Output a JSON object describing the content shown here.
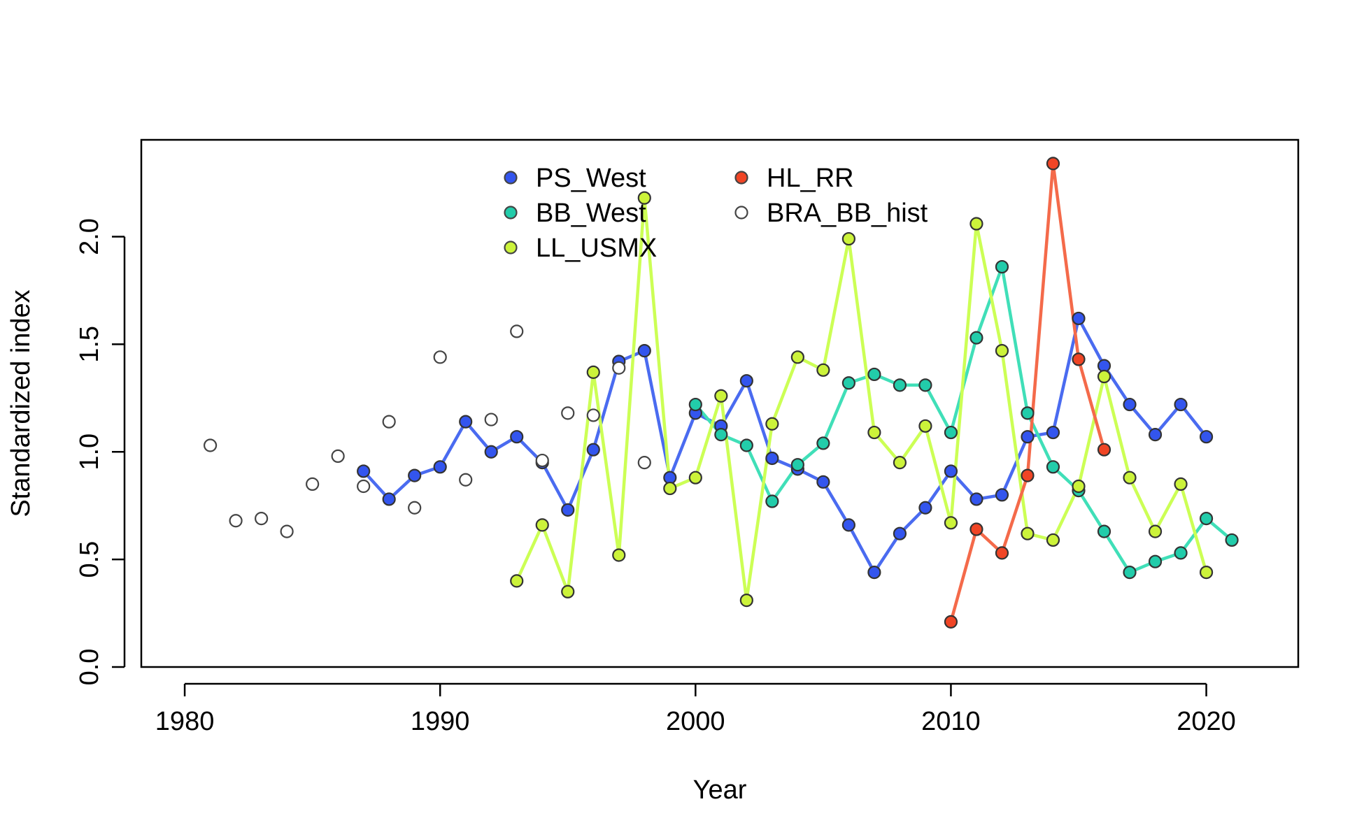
{
  "chart_data": {
    "type": "line",
    "title": "",
    "xlabel": "Year",
    "ylabel": "Standardized index",
    "xlim": [
      1978.3,
      2023.6
    ],
    "ylim": [
      0,
      2.45
    ],
    "x_ticks": [
      1980,
      1990,
      2000,
      2010,
      2020
    ],
    "y_ticks": [
      0.0,
      0.5,
      1.0,
      1.5,
      2.0
    ],
    "y_tick_labels": [
      "0.0",
      "0.5",
      "1.0",
      "1.5",
      "2.0"
    ],
    "legend_position": "top-center",
    "grid": false,
    "series": [
      {
        "name": "PS_West",
        "color": "#3355ee",
        "line_color": "#4a6bf0",
        "lines": true,
        "x": [
          1987,
          1988,
          1989,
          1990,
          1991,
          1992,
          1993,
          1994,
          1995,
          1996,
          1997,
          1998,
          1999,
          2000,
          2001,
          2002,
          2003,
          2004,
          2005,
          2006,
          2007,
          2008,
          2009,
          2010,
          2011,
          2012,
          2013,
          2014,
          2015,
          2016,
          2017,
          2018,
          2019,
          2020
        ],
        "y": [
          0.91,
          0.78,
          0.89,
          0.93,
          1.14,
          1.0,
          1.07,
          0.95,
          0.73,
          1.01,
          1.42,
          1.47,
          0.88,
          1.18,
          1.12,
          1.33,
          0.97,
          0.92,
          0.86,
          0.66,
          0.44,
          0.62,
          0.74,
          0.91,
          0.78,
          0.8,
          1.07,
          1.09,
          1.62,
          1.4,
          1.22,
          1.08,
          1.22,
          1.07
        ]
      },
      {
        "name": "BB_West",
        "color": "#22ccaa",
        "line_color": "#40dfb8",
        "lines": true,
        "x": [
          2000,
          2001,
          2002,
          2003,
          2004,
          2005,
          2006,
          2007,
          2008,
          2009,
          2010,
          2011,
          2012,
          2013,
          2014,
          2015,
          2016,
          2017,
          2018,
          2019,
          2020,
          2021
        ],
        "y": [
          1.22,
          1.08,
          1.03,
          0.77,
          0.94,
          1.04,
          1.32,
          1.36,
          1.31,
          1.31,
          1.09,
          1.53,
          1.86,
          1.18,
          0.93,
          0.82,
          0.63,
          0.44,
          0.49,
          0.53,
          0.69,
          0.59
        ]
      },
      {
        "name": "LL_USMX",
        "color": "#ccf33a",
        "line_color": "#ccff55",
        "lines": true,
        "x": [
          1993,
          1994,
          1995,
          1996,
          1997,
          1998,
          1999,
          2000,
          2001,
          2002,
          2003,
          2004,
          2005,
          2006,
          2007,
          2008,
          2009,
          2010,
          2011,
          2012,
          2013,
          2014,
          2015,
          2016,
          2017,
          2018,
          2019,
          2020
        ],
        "y": [
          0.4,
          0.66,
          0.35,
          1.37,
          0.52,
          2.18,
          0.83,
          0.88,
          1.26,
          0.31,
          1.13,
          1.44,
          1.38,
          1.99,
          1.09,
          0.95,
          1.12,
          0.67,
          2.06,
          1.47,
          0.62,
          0.59,
          0.84,
          1.35,
          0.88,
          0.63,
          0.85,
          0.44
        ]
      },
      {
        "name": "HL_RR",
        "color": "#f04525",
        "line_color": "#f46a4a",
        "lines": true,
        "x": [
          2010,
          2011,
          2012,
          2013,
          2014,
          2015,
          2016
        ],
        "y": [
          0.21,
          0.64,
          0.53,
          0.89,
          2.34,
          1.43,
          1.01
        ]
      },
      {
        "name": "BRA_BB_hist",
        "color": "#ffffff",
        "line_color": "",
        "lines": false,
        "x": [
          1981,
          1982,
          1983,
          1984,
          1985,
          1986,
          1987,
          1988,
          1989,
          1990,
          1991,
          1992,
          1993,
          1994,
          1995,
          1996,
          1997,
          1998
        ],
        "y": [
          1.03,
          0.68,
          0.69,
          0.63,
          0.85,
          0.98,
          0.84,
          1.14,
          0.74,
          1.44,
          0.87,
          1.15,
          1.56,
          0.96,
          1.18,
          1.17,
          1.39,
          0.95
        ]
      }
    ]
  }
}
